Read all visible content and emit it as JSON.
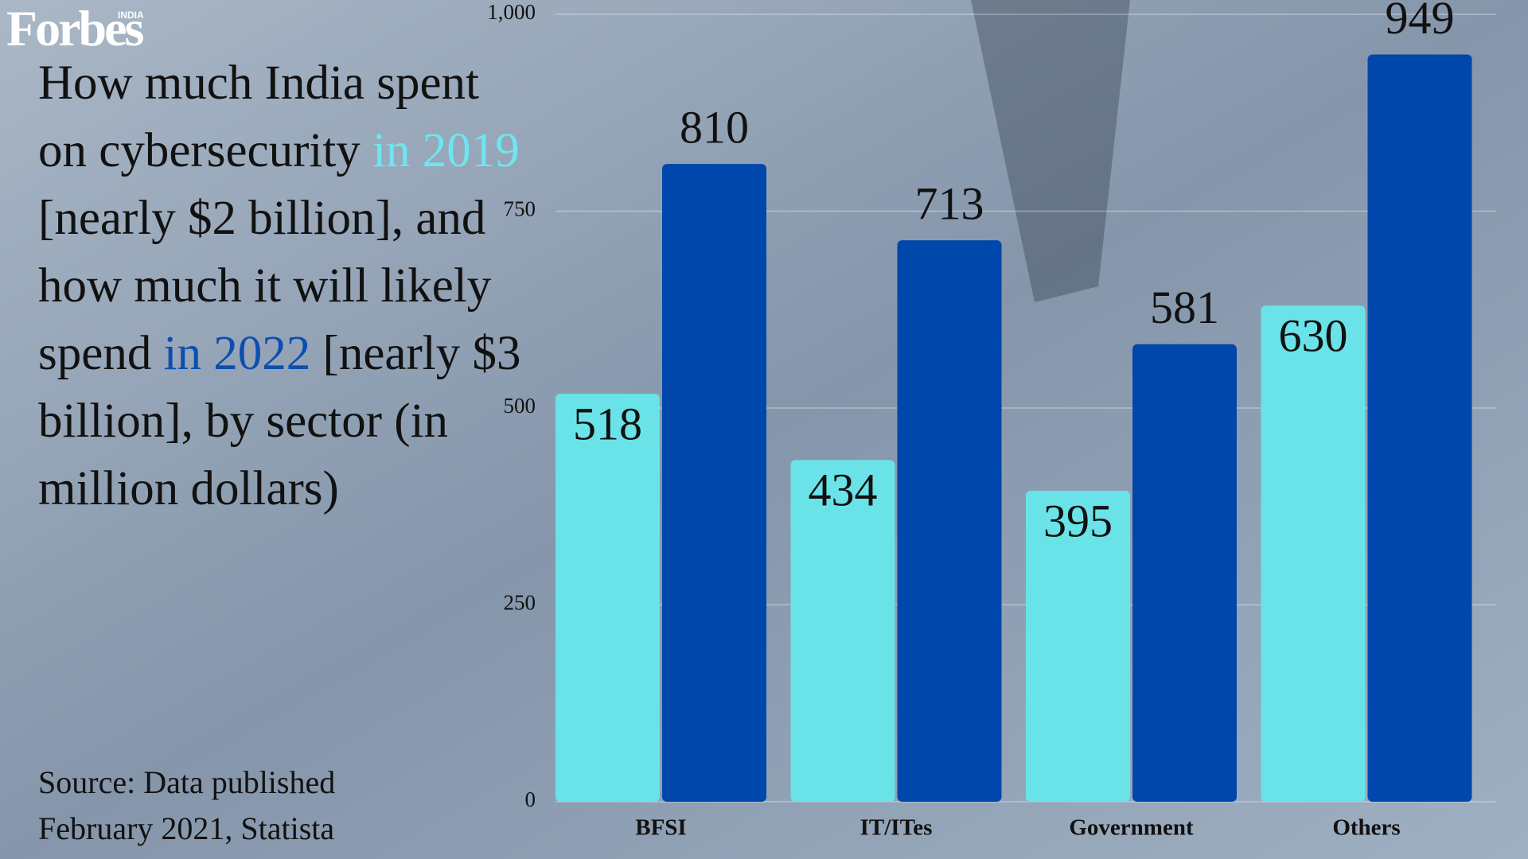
{
  "logo": {
    "name": "Forbes",
    "edition": "INDIA"
  },
  "chart_data": {
    "type": "bar",
    "title_parts": [
      "How much India spent on cybersecurity",
      "in 2019",
      "[nearly $2 billion], and how much it will likely spend",
      "in 2022",
      "[nearly $3 billion], by sector (in million dollars)"
    ],
    "source": "Source: Data published February 2021, Statista",
    "categories": [
      "BFSI",
      "IT/ITes",
      "Government",
      "Others"
    ],
    "series": [
      {
        "color": "#6ae3e8",
        "values": [
          518,
          434,
          395,
          630
        ]
      },
      {
        "color": "#0047ab",
        "values": [
          810,
          713,
          581,
          949
        ]
      }
    ],
    "ylim": [
      0,
      1000
    ],
    "yticks": [
      0,
      250,
      500,
      750,
      {
        "value": 1000,
        "label": "1,000"
      }
    ],
    "grid": true
  }
}
